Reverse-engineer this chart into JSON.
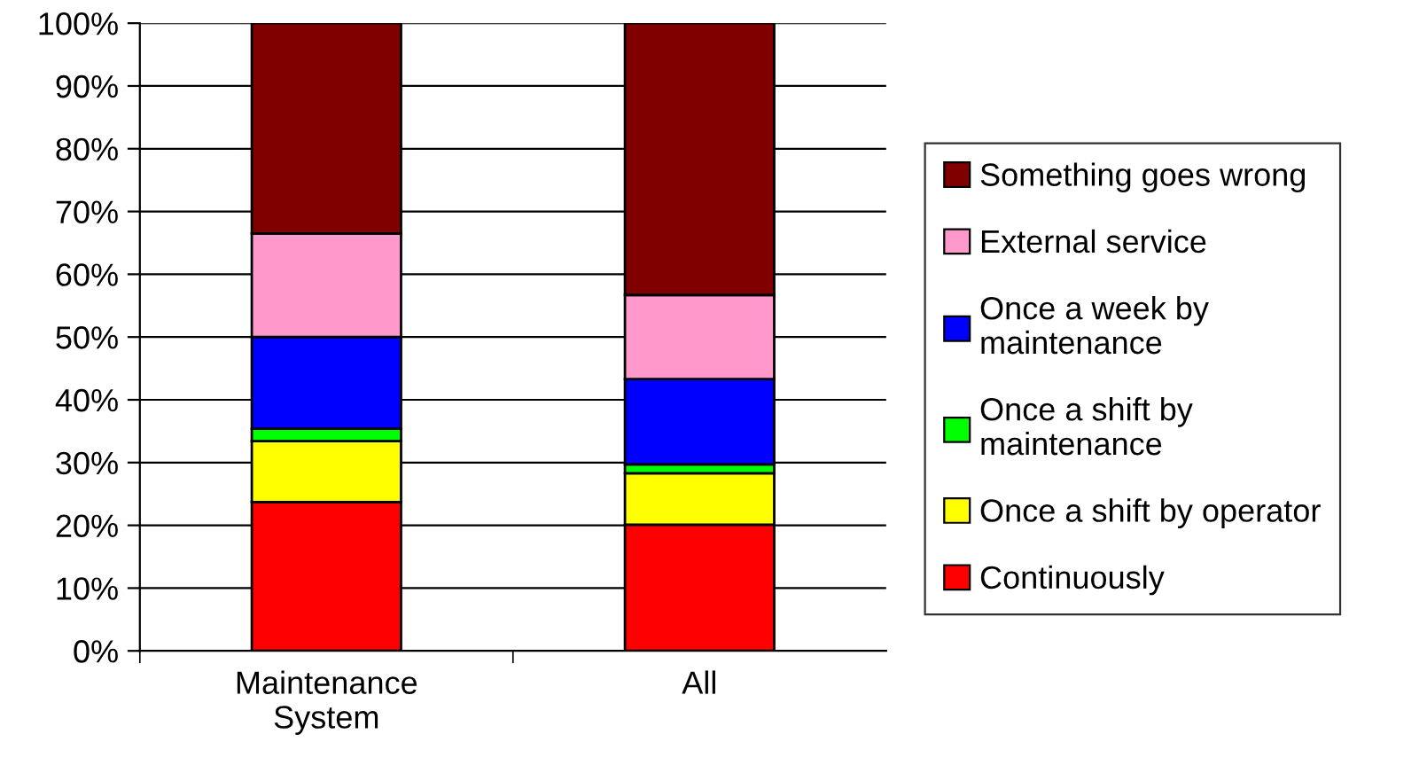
{
  "chart_data": {
    "type": "bar",
    "stacked": true,
    "categories": [
      "Maintenance\nSystem",
      "All"
    ],
    "series": [
      {
        "name": "Continuously",
        "color": "#ff0000",
        "values": [
          23.7,
          20.1
        ]
      },
      {
        "name": "Once a shift by operator",
        "color": "#ffff00",
        "values": [
          9.7,
          8.2
        ]
      },
      {
        "name": "Once a shift by\nmaintenance",
        "color": "#00ff00",
        "values": [
          2.0,
          1.4
        ]
      },
      {
        "name": "Once a week by\nmaintenance",
        "color": "#0000ff",
        "values": [
          14.6,
          13.6
        ]
      },
      {
        "name": "External service",
        "color": "#ff99cc",
        "values": [
          16.5,
          13.4
        ]
      },
      {
        "name": "Something goes wrong",
        "color": "#800000",
        "values": [
          33.5,
          43.3
        ]
      }
    ],
    "ylim": [
      0,
      100
    ],
    "yticks": [
      {
        "value": 0,
        "label": "0%"
      },
      {
        "value": 10,
        "label": "10%"
      },
      {
        "value": 20,
        "label": "20%"
      },
      {
        "value": 30,
        "label": "30%"
      },
      {
        "value": 40,
        "label": "40%"
      },
      {
        "value": 50,
        "label": "50%"
      },
      {
        "value": 60,
        "label": "60%"
      },
      {
        "value": 70,
        "label": "70%"
      },
      {
        "value": 80,
        "label": "80%"
      },
      {
        "value": 90,
        "label": "90%"
      },
      {
        "value": 100,
        "label": "100%"
      }
    ],
    "grid": "y",
    "legend": "right"
  }
}
